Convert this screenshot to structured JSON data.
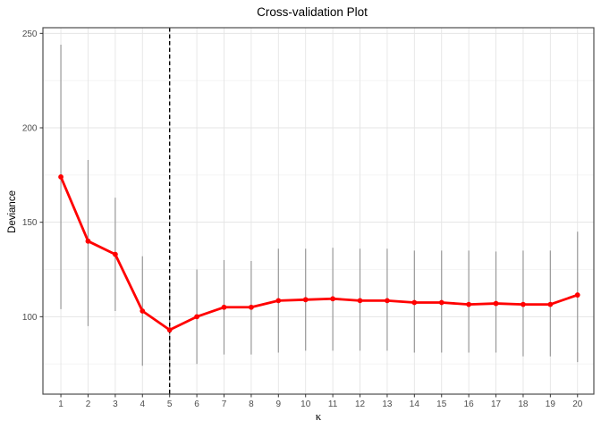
{
  "chart_data": {
    "type": "line",
    "title": "Cross-validation Plot",
    "xlabel": "κ",
    "ylabel": "Deviance",
    "x": [
      1,
      2,
      3,
      4,
      5,
      6,
      7,
      8,
      9,
      10,
      11,
      12,
      13,
      14,
      15,
      16,
      17,
      18,
      19,
      20
    ],
    "deviance": [
      174,
      140,
      133,
      103,
      93,
      100,
      105,
      105,
      108.5,
      109,
      109.5,
      108.5,
      108.5,
      107.5,
      107.5,
      106.5,
      107,
      106.5,
      106.5,
      111.5
    ],
    "lower": [
      104,
      95,
      103,
      74,
      69,
      75,
      80,
      80,
      81,
      82,
      82,
      82,
      82,
      81,
      81,
      81,
      81,
      79,
      79,
      76
    ],
    "upper": [
      244,
      183,
      163,
      132,
      117,
      125,
      130,
      129.5,
      136,
      136,
      136.5,
      136,
      136,
      135,
      135,
      135,
      134.5,
      135,
      135,
      145
    ],
    "vline_x": 5,
    "xlim": [
      0.34,
      20.6
    ],
    "ylim": [
      59,
      253
    ],
    "xticks": [
      1,
      2,
      3,
      4,
      5,
      6,
      7,
      8,
      9,
      10,
      11,
      12,
      13,
      14,
      15,
      16,
      17,
      18,
      19,
      20
    ],
    "yticks": [
      100,
      150,
      200,
      250
    ],
    "yticks_minor": [
      75,
      125,
      175,
      225
    ],
    "grid": true,
    "legend": "none",
    "error_bars": true,
    "colors": {
      "line": "#ff0000",
      "point": "#ff0000",
      "error_bar": "#999999",
      "vline": "#000000",
      "grid_major": "#e5e5e5",
      "grid_minor": "#f2f2f2",
      "panel_border": "#4d4d4d",
      "tick": "#333333",
      "tick_label": "#4d4d4d",
      "title": "#000000",
      "background": "#ffffff"
    }
  }
}
